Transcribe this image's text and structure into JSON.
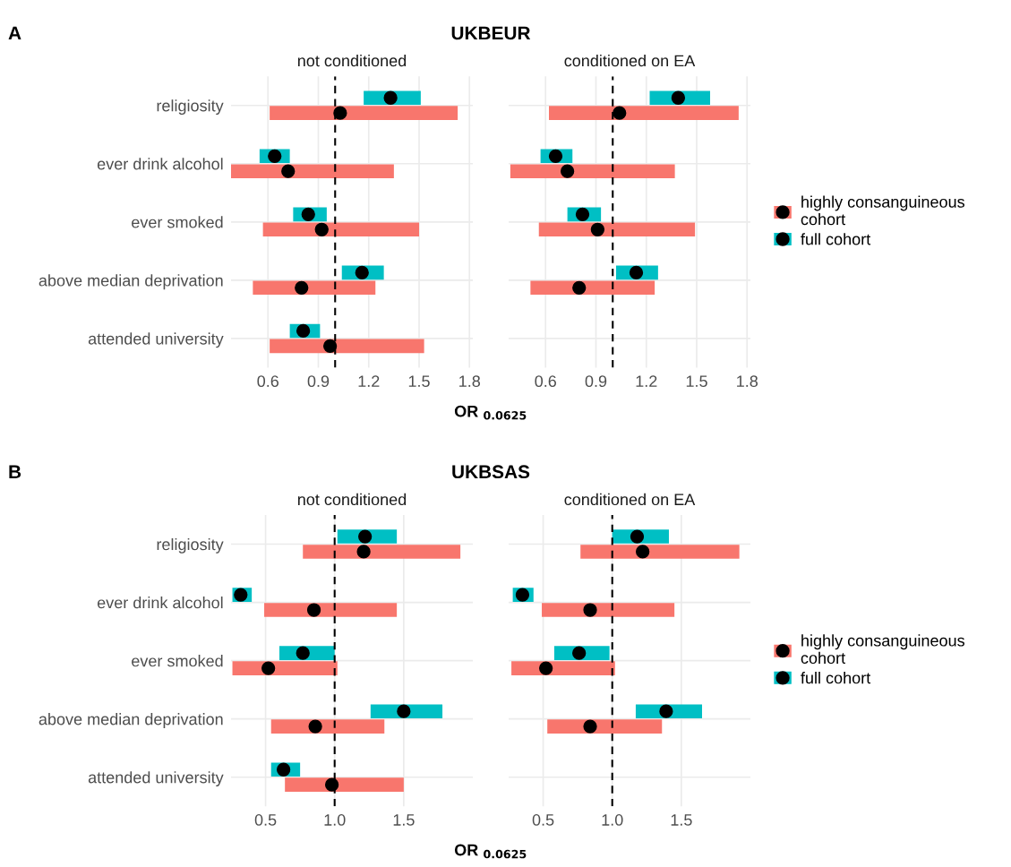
{
  "chart_data": [
    {
      "type": "bar",
      "orientation": "horizontal",
      "title": "UKBEUR",
      "subtitle": "not conditioned",
      "xlabel": "OR $_{0.0625}$",
      "annotations": [
        "A"
      ],
      "categories": [
        "religiosity",
        "ever drink alcohol",
        "ever smoked",
        "above median deprivation",
        "attended university"
      ],
      "xlim": [
        0.38,
        1.82
      ],
      "xticks": [
        0.6,
        0.9,
        1.2,
        1.5,
        1.8
      ],
      "grid": true,
      "ref_lines": [
        {
          "axis": "x",
          "value": 1.0,
          "color": "#000000",
          "line_style": "dashed"
        }
      ],
      "series": [
        {
          "color": "#f8766d",
          "base": [
            0.61,
            0.38,
            0.57,
            0.51,
            0.61
          ],
          "values": [
            1.12,
            0.97,
            0.93,
            0.73,
            0.92
          ]
        },
        {
          "color": "#00bfc4",
          "base": [
            1.17,
            0.55,
            0.75,
            1.04,
            0.73
          ],
          "values": [
            0.34,
            0.18,
            0.2,
            0.25,
            0.18
          ]
        },
        {
          "type": "scatter",
          "color": "#000000",
          "values": [
            1.03,
            0.72,
            0.92,
            0.8,
            0.97
          ]
        },
        {
          "type": "scatter",
          "color": "#000000",
          "values": [
            1.33,
            0.64,
            0.84,
            1.16,
            0.81
          ]
        }
      ]
    },
    {
      "type": "bar",
      "orientation": "horizontal",
      "subtitle": "conditioned on EA",
      "categories": [
        null,
        null,
        null,
        null,
        null
      ],
      "xlim": [
        0.38,
        1.82
      ],
      "xticks": [
        0.6,
        0.9,
        1.2,
        1.5,
        1.8
      ],
      "grid": true,
      "tick_labels": "x",
      "legend": "right",
      "ref_lines": [
        {
          "axis": "x",
          "value": 1.0,
          "color": "#000000",
          "line_style": "dashed"
        }
      ],
      "series": [
        {
          "name": "highly consanguineous\ncohort",
          "color": "#f8766d",
          "base": [
            0.62,
            0.39,
            0.56,
            0.51,
            null
          ],
          "values": [
            1.13,
            0.98,
            0.93,
            0.74,
            null
          ]
        },
        {
          "name": "full cohort",
          "color": "#00bfc4",
          "base": [
            1.22,
            0.57,
            0.73,
            1.02,
            null
          ],
          "values": [
            0.36,
            0.19,
            0.2,
            0.25,
            null
          ]
        },
        {
          "type": "scatter",
          "color": "#000000",
          "values": [
            1.04,
            0.73,
            0.91,
            0.8,
            null
          ]
        },
        {
          "type": "scatter",
          "color": "#000000",
          "values": [
            1.39,
            0.66,
            0.82,
            1.14,
            null
          ]
        }
      ]
    },
    {
      "type": "bar",
      "orientation": "horizontal",
      "title": "UKBSAS",
      "subtitle": "not conditioned",
      "xlabel": "OR $_{0.0625}$",
      "annotations": [
        "B"
      ],
      "categories": [
        "religiosity",
        "ever drink alcohol",
        "ever smoked",
        "above median deprivation",
        "attended university"
      ],
      "xlim": [
        0.25,
        2.0
      ],
      "xticks": [
        0.5,
        {
          "value": 1.0,
          "label": "1.0"
        },
        1.5
      ],
      "grid": true,
      "ref_lines": [
        {
          "axis": "x",
          "value": 1.0,
          "color": "#000000",
          "line_style": "dashed"
        }
      ],
      "series": [
        {
          "color": "#f8766d",
          "base": [
            0.77,
            0.49,
            0.26,
            0.54,
            0.64
          ],
          "values": [
            1.14,
            0.96,
            0.76,
            0.82,
            0.86
          ]
        },
        {
          "color": "#00bfc4",
          "base": [
            1.02,
            0.26,
            0.6,
            1.26,
            0.54
          ],
          "values": [
            0.43,
            0.14,
            0.4,
            0.52,
            0.21
          ]
        },
        {
          "type": "scatter",
          "color": "#000000",
          "values": [
            1.21,
            0.85,
            0.52,
            0.86,
            0.98
          ]
        },
        {
          "type": "scatter",
          "color": "#000000",
          "values": [
            1.22,
            0.32,
            0.77,
            1.5,
            0.63
          ]
        }
      ]
    },
    {
      "type": "bar",
      "orientation": "horizontal",
      "subtitle": "conditioned on EA",
      "categories": [
        null,
        null,
        null,
        null,
        null
      ],
      "xlim": [
        0.25,
        2.0
      ],
      "xticks": [
        0.5,
        {
          "value": 1.0,
          "label": "1.0"
        },
        1.5
      ],
      "grid": true,
      "tick_labels": "x",
      "legend": "right",
      "ref_lines": [
        {
          "axis": "x",
          "value": 1.0,
          "color": "#000000",
          "line_style": "dashed"
        }
      ],
      "series": [
        {
          "name": "highly consanguineous\ncohort",
          "color": "#f8766d",
          "base": [
            0.77,
            0.49,
            0.27,
            0.53,
            null
          ],
          "values": [
            1.15,
            0.96,
            0.75,
            0.83,
            null
          ]
        },
        {
          "name": "full cohort",
          "color": "#00bfc4",
          "base": [
            1.0,
            0.28,
            0.58,
            1.17,
            null
          ],
          "values": [
            0.41,
            0.15,
            0.4,
            0.48,
            null
          ]
        },
        {
          "type": "scatter",
          "color": "#000000",
          "values": [
            1.22,
            0.84,
            0.52,
            0.84,
            null
          ]
        },
        {
          "type": "scatter",
          "color": "#000000",
          "values": [
            1.18,
            0.35,
            0.76,
            1.39,
            null
          ]
        }
      ]
    }
  ]
}
